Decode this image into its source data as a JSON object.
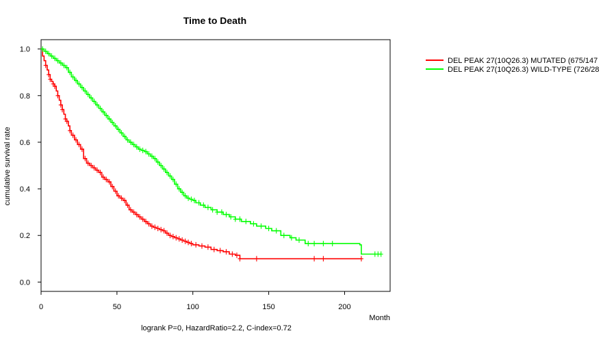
{
  "chart_data": {
    "type": "line",
    "subtype": "kaplan-meier",
    "title": "Time to Death",
    "xlabel": "Month",
    "ylabel": "cumulative survival rate",
    "xlim": [
      0,
      230
    ],
    "ylim": [
      -0.04,
      1.04
    ],
    "xticks": [
      0,
      50,
      100,
      150,
      200
    ],
    "yticks": [
      0.0,
      0.2,
      0.4,
      0.6,
      0.8,
      1.0
    ],
    "xtick_labels": [
      "0",
      "50",
      "100",
      "150",
      "200"
    ],
    "ytick_labels": [
      "0.0",
      "0.2",
      "0.4",
      "0.6",
      "0.8",
      "1.0"
    ],
    "footer": "logrank P=0, HazardRatio=2.2, C-index=0.72",
    "legend_position": "top-right outside plot",
    "series": [
      {
        "name": "DEL PEAK 27(10Q26.3) MUTATED (675/147",
        "color": "#ff0000",
        "points": [
          [
            0,
            1.0
          ],
          [
            1,
            0.97
          ],
          [
            2,
            0.95
          ],
          [
            3,
            0.93
          ],
          [
            4,
            0.91
          ],
          [
            5,
            0.89
          ],
          [
            6,
            0.87
          ],
          [
            7,
            0.86
          ],
          [
            8,
            0.85
          ],
          [
            9,
            0.84
          ],
          [
            10,
            0.82
          ],
          [
            11,
            0.8
          ],
          [
            12,
            0.78
          ],
          [
            13,
            0.76
          ],
          [
            14,
            0.74
          ],
          [
            15,
            0.72
          ],
          [
            16,
            0.7
          ],
          [
            17,
            0.69
          ],
          [
            18,
            0.67
          ],
          [
            19,
            0.65
          ],
          [
            20,
            0.63
          ],
          [
            22,
            0.61
          ],
          [
            24,
            0.59
          ],
          [
            26,
            0.57
          ],
          [
            28,
            0.53
          ],
          [
            30,
            0.51
          ],
          [
            32,
            0.5
          ],
          [
            34,
            0.49
          ],
          [
            36,
            0.48
          ],
          [
            38,
            0.47
          ],
          [
            40,
            0.45
          ],
          [
            42,
            0.44
          ],
          [
            44,
            0.43
          ],
          [
            46,
            0.41
          ],
          [
            48,
            0.39
          ],
          [
            50,
            0.37
          ],
          [
            52,
            0.36
          ],
          [
            54,
            0.35
          ],
          [
            56,
            0.33
          ],
          [
            58,
            0.31
          ],
          [
            60,
            0.3
          ],
          [
            62,
            0.29
          ],
          [
            64,
            0.28
          ],
          [
            66,
            0.27
          ],
          [
            68,
            0.26
          ],
          [
            70,
            0.25
          ],
          [
            72,
            0.24
          ],
          [
            74,
            0.235
          ],
          [
            76,
            0.23
          ],
          [
            78,
            0.225
          ],
          [
            80,
            0.22
          ],
          [
            82,
            0.21
          ],
          [
            84,
            0.2
          ],
          [
            86,
            0.195
          ],
          [
            88,
            0.19
          ],
          [
            90,
            0.185
          ],
          [
            92,
            0.18
          ],
          [
            94,
            0.175
          ],
          [
            96,
            0.17
          ],
          [
            98,
            0.165
          ],
          [
            100,
            0.16
          ],
          [
            104,
            0.155
          ],
          [
            108,
            0.15
          ],
          [
            112,
            0.14
          ],
          [
            116,
            0.135
          ],
          [
            120,
            0.13
          ],
          [
            124,
            0.12
          ],
          [
            128,
            0.115
          ],
          [
            131,
            0.1
          ],
          [
            211,
            0.1
          ]
        ],
        "censor_x": [
          3,
          5,
          6,
          8,
          9,
          11,
          13,
          14,
          16,
          17,
          19,
          21,
          23,
          25,
          27,
          29,
          31,
          33,
          35,
          37,
          39,
          41,
          43,
          45,
          47,
          49,
          51,
          53,
          55,
          57,
          59,
          61,
          63,
          65,
          67,
          69,
          71,
          73,
          75,
          77,
          79,
          81,
          83,
          85,
          87,
          89,
          91,
          93,
          95,
          97,
          99,
          102,
          106,
          110,
          114,
          118,
          122,
          126,
          129,
          131,
          142,
          180,
          186,
          211
        ]
      },
      {
        "name": "DEL PEAK 27(10Q26.3) WILD-TYPE (726/28",
        "color": "#00ff00",
        "points": [
          [
            0,
            1.0
          ],
          [
            2,
            0.99
          ],
          [
            4,
            0.98
          ],
          [
            6,
            0.97
          ],
          [
            8,
            0.96
          ],
          [
            10,
            0.95
          ],
          [
            12,
            0.94
          ],
          [
            14,
            0.93
          ],
          [
            16,
            0.92
          ],
          [
            18,
            0.9
          ],
          [
            20,
            0.88
          ],
          [
            22,
            0.865
          ],
          [
            24,
            0.85
          ],
          [
            26,
            0.835
          ],
          [
            28,
            0.82
          ],
          [
            30,
            0.805
          ],
          [
            32,
            0.79
          ],
          [
            34,
            0.775
          ],
          [
            36,
            0.76
          ],
          [
            38,
            0.745
          ],
          [
            40,
            0.73
          ],
          [
            42,
            0.715
          ],
          [
            44,
            0.7
          ],
          [
            46,
            0.685
          ],
          [
            48,
            0.67
          ],
          [
            50,
            0.655
          ],
          [
            52,
            0.64
          ],
          [
            54,
            0.625
          ],
          [
            56,
            0.61
          ],
          [
            58,
            0.6
          ],
          [
            60,
            0.59
          ],
          [
            62,
            0.58
          ],
          [
            64,
            0.57
          ],
          [
            66,
            0.565
          ],
          [
            68,
            0.56
          ],
          [
            70,
            0.55
          ],
          [
            72,
            0.54
          ],
          [
            74,
            0.53
          ],
          [
            76,
            0.515
          ],
          [
            78,
            0.5
          ],
          [
            80,
            0.485
          ],
          [
            82,
            0.47
          ],
          [
            84,
            0.455
          ],
          [
            86,
            0.44
          ],
          [
            88,
            0.42
          ],
          [
            90,
            0.4
          ],
          [
            92,
            0.385
          ],
          [
            94,
            0.37
          ],
          [
            96,
            0.36
          ],
          [
            98,
            0.355
          ],
          [
            100,
            0.35
          ],
          [
            102,
            0.34
          ],
          [
            105,
            0.33
          ],
          [
            108,
            0.32
          ],
          [
            112,
            0.31
          ],
          [
            116,
            0.3
          ],
          [
            120,
            0.29
          ],
          [
            124,
            0.28
          ],
          [
            128,
            0.27
          ],
          [
            132,
            0.26
          ],
          [
            138,
            0.25
          ],
          [
            142,
            0.24
          ],
          [
            148,
            0.23
          ],
          [
            152,
            0.22
          ],
          [
            158,
            0.2
          ],
          [
            164,
            0.19
          ],
          [
            168,
            0.18
          ],
          [
            174,
            0.165
          ],
          [
            210,
            0.16
          ],
          [
            211,
            0.12
          ],
          [
            224,
            0.12
          ]
        ],
        "censor_x": [
          1,
          3,
          5,
          7,
          9,
          11,
          13,
          15,
          17,
          19,
          21,
          23,
          25,
          27,
          29,
          31,
          33,
          35,
          37,
          39,
          41,
          43,
          45,
          47,
          49,
          51,
          53,
          55,
          57,
          59,
          61,
          63,
          65,
          67,
          69,
          71,
          73,
          75,
          77,
          79,
          81,
          83,
          85,
          87,
          89,
          91,
          93,
          95,
          97,
          99,
          101,
          104,
          107,
          110,
          113,
          116,
          119,
          122,
          125,
          128,
          131,
          135,
          140,
          145,
          150,
          155,
          160,
          165,
          170,
          176,
          180,
          186,
          192,
          220,
          222,
          224
        ]
      }
    ]
  }
}
